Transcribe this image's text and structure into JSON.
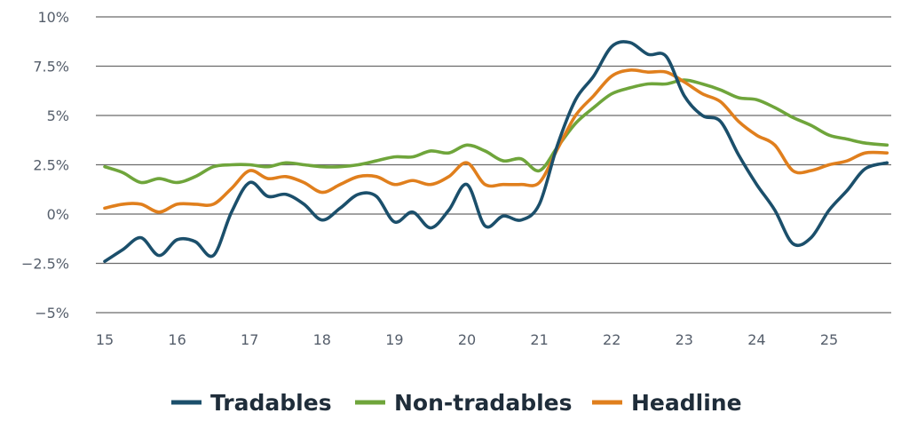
{
  "chart_data": {
    "type": "line",
    "title": "",
    "xlabel": "",
    "ylabel": "",
    "xlim": [
      15,
      25.9
    ],
    "ylim": [
      -5,
      10
    ],
    "grid": "horizontal",
    "legend_placement": "bottom-center",
    "x_ticks": [
      {
        "value": 15,
        "label": "15"
      },
      {
        "value": 16,
        "label": "16"
      },
      {
        "value": 17,
        "label": "17"
      },
      {
        "value": 18,
        "label": "18"
      },
      {
        "value": 19,
        "label": "19"
      },
      {
        "value": 20,
        "label": "20"
      },
      {
        "value": 21,
        "label": "21"
      },
      {
        "value": 22,
        "label": "22"
      },
      {
        "value": 23,
        "label": "23"
      },
      {
        "value": 24,
        "label": "24"
      },
      {
        "value": 25,
        "label": "25"
      }
    ],
    "y_ticks": [
      {
        "value": 10,
        "label": "10%"
      },
      {
        "value": 7.5,
        "label": "7.5%"
      },
      {
        "value": 5,
        "label": "5%"
      },
      {
        "value": 2.5,
        "label": "2.5%"
      },
      {
        "value": 0,
        "label": "0%"
      },
      {
        "value": -2.5,
        "label": "−2.5%"
      },
      {
        "value": -5,
        "label": "−5%"
      }
    ],
    "series": [
      {
        "name": "Tradables",
        "color": "#1b4f6b",
        "points": [
          [
            15.0,
            -2.4
          ],
          [
            15.25,
            -1.8
          ],
          [
            15.5,
            -1.2
          ],
          [
            15.75,
            -2.1
          ],
          [
            16.0,
            -1.3
          ],
          [
            16.25,
            -1.4
          ],
          [
            16.5,
            -2.1
          ],
          [
            16.75,
            0.1
          ],
          [
            17.0,
            1.6
          ],
          [
            17.25,
            0.9
          ],
          [
            17.5,
            1.0
          ],
          [
            17.75,
            0.5
          ],
          [
            18.0,
            -0.3
          ],
          [
            18.25,
            0.3
          ],
          [
            18.5,
            1.0
          ],
          [
            18.75,
            0.9
          ],
          [
            19.0,
            -0.4
          ],
          [
            19.25,
            0.1
          ],
          [
            19.5,
            -0.7
          ],
          [
            19.75,
            0.2
          ],
          [
            20.0,
            1.5
          ],
          [
            20.25,
            -0.6
          ],
          [
            20.5,
            -0.1
          ],
          [
            20.75,
            -0.3
          ],
          [
            21.0,
            0.5
          ],
          [
            21.25,
            3.5
          ],
          [
            21.5,
            5.8
          ],
          [
            21.75,
            7.0
          ],
          [
            22.0,
            8.5
          ],
          [
            22.25,
            8.7
          ],
          [
            22.5,
            8.1
          ],
          [
            22.75,
            8.0
          ],
          [
            23.0,
            6.0
          ],
          [
            23.25,
            5.0
          ],
          [
            23.5,
            4.7
          ],
          [
            23.75,
            3.0
          ],
          [
            24.0,
            1.5
          ],
          [
            24.25,
            0.2
          ],
          [
            24.5,
            -1.5
          ],
          [
            24.75,
            -1.2
          ],
          [
            25.0,
            0.2
          ],
          [
            25.25,
            1.2
          ],
          [
            25.5,
            2.3
          ],
          [
            25.8,
            2.6
          ]
        ]
      },
      {
        "name": "Non-tradables",
        "color": "#6fa53b",
        "points": [
          [
            15.0,
            2.4
          ],
          [
            15.25,
            2.1
          ],
          [
            15.5,
            1.6
          ],
          [
            15.75,
            1.8
          ],
          [
            16.0,
            1.6
          ],
          [
            16.25,
            1.9
          ],
          [
            16.5,
            2.4
          ],
          [
            16.75,
            2.5
          ],
          [
            17.0,
            2.5
          ],
          [
            17.25,
            2.4
          ],
          [
            17.5,
            2.6
          ],
          [
            17.75,
            2.5
          ],
          [
            18.0,
            2.4
          ],
          [
            18.25,
            2.4
          ],
          [
            18.5,
            2.5
          ],
          [
            18.75,
            2.7
          ],
          [
            19.0,
            2.9
          ],
          [
            19.25,
            2.9
          ],
          [
            19.5,
            3.2
          ],
          [
            19.75,
            3.1
          ],
          [
            20.0,
            3.5
          ],
          [
            20.25,
            3.2
          ],
          [
            20.5,
            2.7
          ],
          [
            20.75,
            2.8
          ],
          [
            21.0,
            2.2
          ],
          [
            21.25,
            3.4
          ],
          [
            21.5,
            4.6
          ],
          [
            21.75,
            5.4
          ],
          [
            22.0,
            6.1
          ],
          [
            22.25,
            6.4
          ],
          [
            22.5,
            6.6
          ],
          [
            22.75,
            6.6
          ],
          [
            23.0,
            6.8
          ],
          [
            23.25,
            6.6
          ],
          [
            23.5,
            6.3
          ],
          [
            23.75,
            5.9
          ],
          [
            24.0,
            5.8
          ],
          [
            24.25,
            5.4
          ],
          [
            24.5,
            4.9
          ],
          [
            24.75,
            4.5
          ],
          [
            25.0,
            4.0
          ],
          [
            25.25,
            3.8
          ],
          [
            25.5,
            3.6
          ],
          [
            25.8,
            3.5
          ]
        ]
      },
      {
        "name": "Headline",
        "color": "#e07f1d",
        "points": [
          [
            15.0,
            0.3
          ],
          [
            15.25,
            0.5
          ],
          [
            15.5,
            0.5
          ],
          [
            15.75,
            0.1
          ],
          [
            16.0,
            0.5
          ],
          [
            16.25,
            0.5
          ],
          [
            16.5,
            0.5
          ],
          [
            16.75,
            1.3
          ],
          [
            17.0,
            2.2
          ],
          [
            17.25,
            1.8
          ],
          [
            17.5,
            1.9
          ],
          [
            17.75,
            1.6
          ],
          [
            18.0,
            1.1
          ],
          [
            18.25,
            1.5
          ],
          [
            18.5,
            1.9
          ],
          [
            18.75,
            1.9
          ],
          [
            19.0,
            1.5
          ],
          [
            19.25,
            1.7
          ],
          [
            19.5,
            1.5
          ],
          [
            19.75,
            1.9
          ],
          [
            20.0,
            2.6
          ],
          [
            20.25,
            1.5
          ],
          [
            20.5,
            1.5
          ],
          [
            20.75,
            1.5
          ],
          [
            21.0,
            1.6
          ],
          [
            21.25,
            3.3
          ],
          [
            21.5,
            5.0
          ],
          [
            21.75,
            6.0
          ],
          [
            22.0,
            7.0
          ],
          [
            22.25,
            7.3
          ],
          [
            22.5,
            7.2
          ],
          [
            22.75,
            7.2
          ],
          [
            23.0,
            6.7
          ],
          [
            23.25,
            6.1
          ],
          [
            23.5,
            5.7
          ],
          [
            23.75,
            4.7
          ],
          [
            24.0,
            4.0
          ],
          [
            24.25,
            3.5
          ],
          [
            24.5,
            2.2
          ],
          [
            24.75,
            2.2
          ],
          [
            25.0,
            2.5
          ],
          [
            25.25,
            2.7
          ],
          [
            25.5,
            3.1
          ],
          [
            25.8,
            3.1
          ]
        ]
      }
    ]
  }
}
